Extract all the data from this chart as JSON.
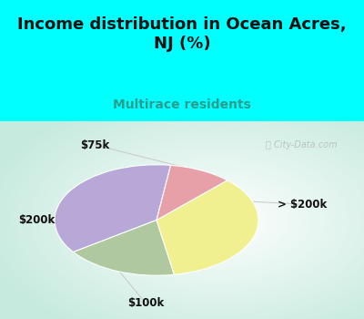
{
  "title": "Income distribution in Ocean Acres,\nNJ (%)",
  "subtitle": "Multirace residents",
  "title_color": "#111111",
  "subtitle_color": "#2a9d8f",
  "top_bg_color": "#00ffff",
  "watermark": "City-Data.com",
  "labels": [
    "> $200k",
    "$100k",
    "$200k",
    "$75k"
  ],
  "sizes": [
    37,
    18,
    35,
    10
  ],
  "colors": [
    "#b8a8d8",
    "#b0c8a0",
    "#f0f090",
    "#e8a0a8"
  ],
  "startangle": 82,
  "label_fontsize": 8.5,
  "title_fontsize": 13,
  "subtitle_fontsize": 10
}
